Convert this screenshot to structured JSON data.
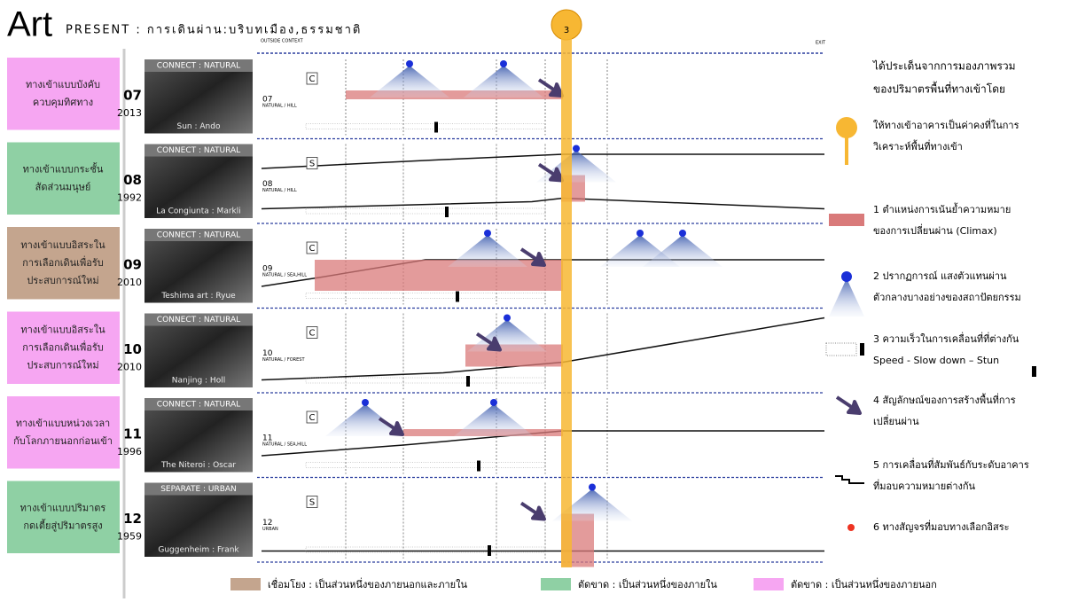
{
  "header": {
    "brand": "Art",
    "title": "PRESENT : การเดินผ่าน:บริบทเมือง,ธรรมชาติ"
  },
  "top_labels": {
    "outside": "OUTSIDE CONTEXT",
    "exit": "EXIT",
    "marker": "3"
  },
  "categories": [
    {
      "lines": [
        "ทางเข้าแบบบังคับ",
        "ควบคุมทิศทาง"
      ],
      "color": "#f6a6f2"
    },
    {
      "lines": [
        "ทางเข้าแบบกระชั้น",
        "สัดส่วนมนุษย์"
      ],
      "color": "#8fd0a4"
    },
    {
      "lines": [
        "ทางเข้าแบบอิสระใน",
        "การเลือกเดินเพื่อรับ",
        "ประสบการณ์ใหม่"
      ],
      "color": "#c4a58e"
    },
    {
      "lines": [
        "ทางเข้าแบบอิสระใน",
        "การเลือกเดินเพื่อรับ",
        "ประสบการณ์ใหม่"
      ],
      "color": "#f6a6f2"
    },
    {
      "lines": [
        "ทางเข้าแบบหน่วงเวลา",
        "กับโลกภายนอกก่อนเข้า"
      ],
      "color": "#f6a6f2"
    },
    {
      "lines": [
        "ทางเข้าแบบปริมาตร",
        "กดเตี้ยสู่ปริมาตรสูง"
      ],
      "color": "#8fd0a4"
    }
  ],
  "rows": [
    {
      "number": "07",
      "year": "2013",
      "tag": "CONNECT : NATURAL",
      "caption": "Sun : Ando",
      "context": "NATURAL / HILL",
      "mark": "C"
    },
    {
      "number": "08",
      "year": "1992",
      "tag": "CONNECT : NATURAL",
      "caption": "La Congiunta : Markli",
      "context": "NATURAL / HILL",
      "mark": "S"
    },
    {
      "number": "09",
      "year": "2010",
      "tag": "CONNECT : NATURAL",
      "caption": "Teshima art : Ryue",
      "context": "NATURAL / SEA,HILL",
      "mark": "C"
    },
    {
      "number": "10",
      "year": "2010",
      "tag": "CONNECT : NATURAL",
      "caption": "Nanjing : Holl",
      "context": "NATURAL / FOREST",
      "mark": "C"
    },
    {
      "number": "11",
      "year": "1996",
      "tag": "CONNECT : NATURAL",
      "caption": "The Niteroi : Oscar",
      "context": "NATURAL / SEA,HILL",
      "mark": "C"
    },
    {
      "number": "12",
      "year": "1959",
      "tag": "SEPARATE : URBAN",
      "caption": "Guggenheim : Frank",
      "context": "URBAN",
      "mark": "S"
    }
  ],
  "legend": {
    "intro": [
      "ได้ประเด็นจากการมองภาพรวม",
      "ของปริมาตรพื้นที่ทางเข้าโดย"
    ],
    "items": [
      {
        "lines": [
          "ให้ทางเข้าอาคารเป็นค่าคงที่ในการ",
          "วิเคราะห์พื้นที่ทางเข้า"
        ]
      },
      {
        "lines": [
          "1 ตำแหน่งการเน้นย้ำความหมาย",
          "ของการเปลี่ยนผ่าน (Climax)"
        ]
      },
      {
        "lines": [
          "2 ปรากฏการณ์ แสงตัวแทนผ่าน",
          "ตัวกลางบางอย่างของสถาปัตยกรรม"
        ]
      },
      {
        "lines": [
          "3 ความเร็วในการเคลื่อนที่ที่ต่างกัน",
          "Speed - Slow down – Stun"
        ]
      },
      {
        "lines": [
          "4 สัญลักษณ์ของการสร้างพื้นที่การ",
          "เปลี่ยนผ่าน"
        ]
      },
      {
        "lines": [
          "5 การเคลื่อนที่สัมพันธ์กับระดับอาคาร",
          "ที่มอบความหมายต่างกัน"
        ]
      },
      {
        "lines": [
          "6 ทางสัญจรที่มอบทางเลือกอิสระ"
        ]
      }
    ]
  },
  "bottom_legend": [
    {
      "label": "เชื่อมโยง : เป็นส่วนหนึ่งของภายนอกและภายใน",
      "color": "#c4a58e"
    },
    {
      "label": "ตัดขาด : เป็นส่วนหนึ่งของภายใน",
      "color": "#8fd0a4"
    },
    {
      "label": "ตัดขาด : เป็นส่วนหนึ่งของภายนอก",
      "color": "#f6a6f2"
    }
  ]
}
